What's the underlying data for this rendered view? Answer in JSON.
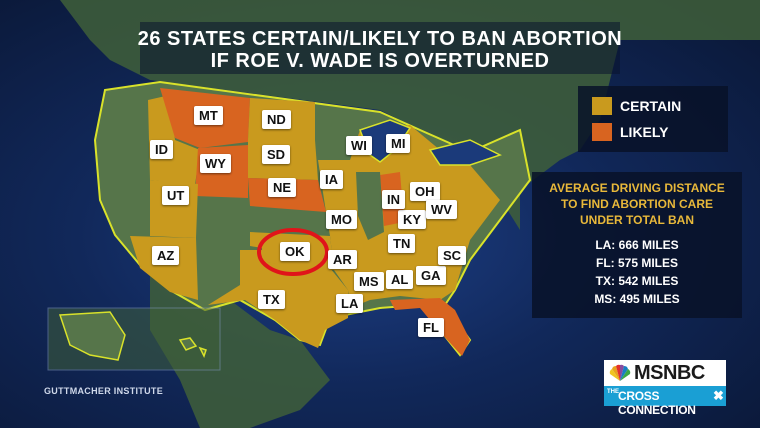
{
  "title": {
    "line1": "26 STATES CERTAIN/LIKELY TO BAN ABORTION",
    "line2": "IF ROE V. WADE IS OVERTURNED"
  },
  "legend": {
    "items": [
      {
        "label": "CERTAIN",
        "color": "#c99a1e"
      },
      {
        "label": "LIKELY",
        "color": "#d86420"
      }
    ]
  },
  "colors": {
    "certain": "#c99a1e",
    "likely": "#d86420",
    "other_state": "#56754a",
    "highlight_circle": "#e0141a",
    "ocean": "#11285a",
    "coast_outline": "#d9e22a"
  },
  "states": [
    {
      "code": "MT",
      "status": "likely"
    },
    {
      "code": "ND",
      "status": "certain"
    },
    {
      "code": "ID",
      "status": "certain"
    },
    {
      "code": "SD",
      "status": "certain"
    },
    {
      "code": "WY",
      "status": "likely"
    },
    {
      "code": "NE",
      "status": "likely"
    },
    {
      "code": "UT",
      "status": "certain"
    },
    {
      "code": "AZ",
      "status": "certain"
    },
    {
      "code": "TX",
      "status": "certain"
    },
    {
      "code": "OK",
      "status": "certain",
      "highlighted": true
    },
    {
      "code": "IA",
      "status": "certain"
    },
    {
      "code": "MO",
      "status": "certain"
    },
    {
      "code": "AR",
      "status": "certain"
    },
    {
      "code": "LA",
      "status": "certain"
    },
    {
      "code": "MS",
      "status": "certain"
    },
    {
      "code": "AL",
      "status": "certain"
    },
    {
      "code": "GA",
      "status": "certain"
    },
    {
      "code": "SC",
      "status": "certain"
    },
    {
      "code": "TN",
      "status": "certain"
    },
    {
      "code": "KY",
      "status": "certain"
    },
    {
      "code": "IN",
      "status": "likely"
    },
    {
      "code": "OH",
      "status": "certain"
    },
    {
      "code": "WV",
      "status": "certain"
    },
    {
      "code": "WI",
      "status": "certain"
    },
    {
      "code": "MI",
      "status": "certain"
    },
    {
      "code": "FL",
      "status": "likely"
    }
  ],
  "driving": {
    "heading": [
      "AVERAGE DRIVING DISTANCE",
      "TO FIND ABORTION CARE",
      "UNDER TOTAL BAN"
    ],
    "items": [
      "LA: 666 MILES",
      "FL: 575 MILES",
      "TX: 542 MILES",
      "MS: 495 MILES"
    ]
  },
  "credit": "GUTTMACHER INSTITUTE",
  "logo": {
    "brand": "MSNBC",
    "prefix": "THE",
    "show": "CROSS CONNECTION",
    "mark": "✖"
  }
}
